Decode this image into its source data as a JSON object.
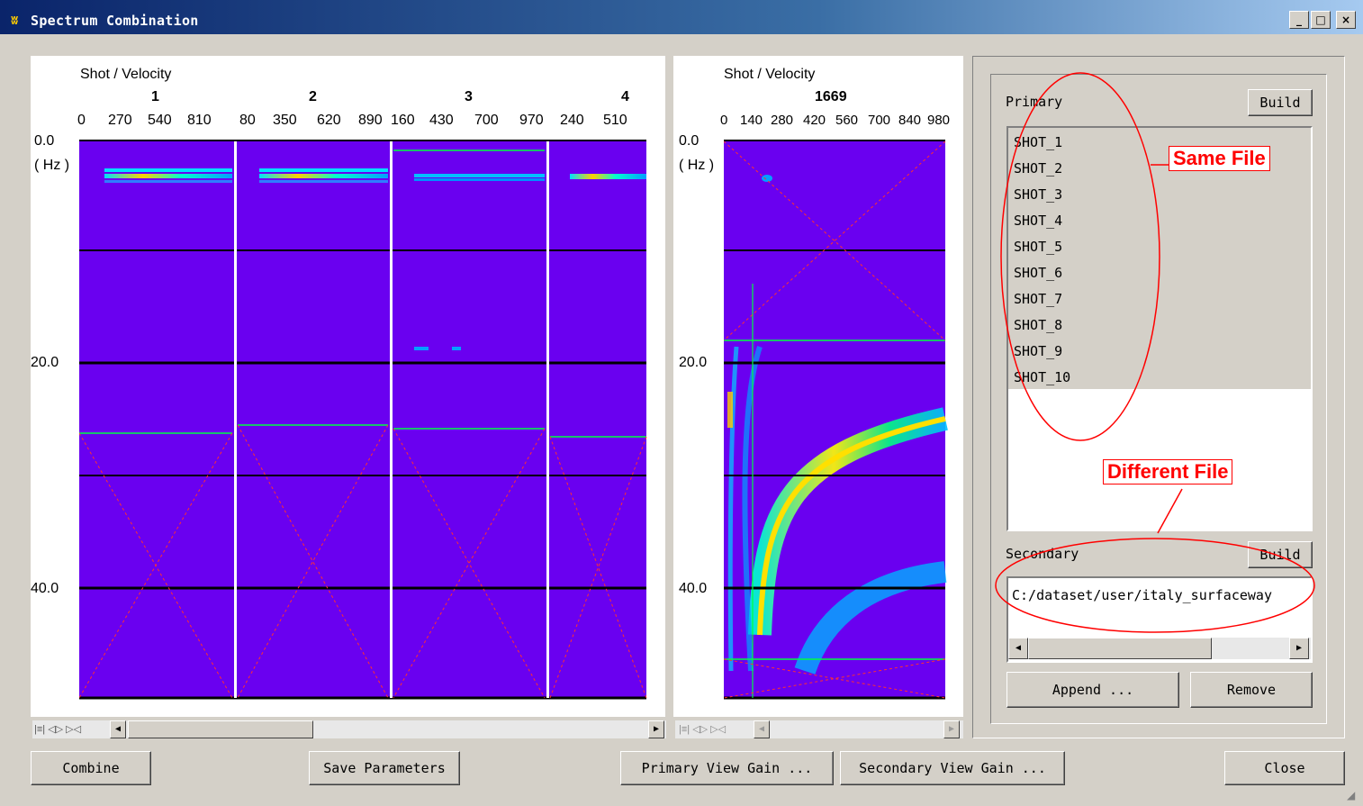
{
  "window": {
    "title": "Spectrum Combination",
    "minimize": "_",
    "maximize": "□",
    "close": "×"
  },
  "primary_plot": {
    "header": "Shot / Velocity",
    "shots": [
      "1",
      "2",
      "3",
      "4"
    ],
    "velocity_ticks": [
      [
        "0",
        "270",
        "540",
        "810"
      ],
      [
        "80",
        "350",
        "620",
        "890"
      ],
      [
        "160",
        "430",
        "700",
        "970"
      ],
      [
        "240",
        "510"
      ]
    ],
    "freq_ticks": [
      "0.0",
      "20.0",
      "40.0"
    ],
    "freq_unit": "( Hz )"
  },
  "secondary_plot": {
    "header": "Shot / Velocity",
    "shot": "1669",
    "velocity_ticks": [
      "0",
      "140",
      "280",
      "420",
      "560",
      "700",
      "840",
      "980"
    ],
    "freq_ticks": [
      "0.0",
      "20.0",
      "40.0"
    ],
    "freq_unit": "( Hz )"
  },
  "primary": {
    "label": "Primary",
    "build_label": "Build",
    "items": [
      "SHOT_1",
      "SHOT_2",
      "SHOT_3",
      "SHOT_4",
      "SHOT_5",
      "SHOT_6",
      "SHOT_7",
      "SHOT_8",
      "SHOT_9",
      "SHOT_10"
    ]
  },
  "secondary": {
    "label": "Secondary",
    "build_label": "Build",
    "path": "C:/dataset/user/italy_surfaceway"
  },
  "annotations": {
    "same_file": "Same File",
    "different_file": "Different File"
  },
  "buttons": {
    "append": "Append ...",
    "remove": "Remove",
    "combine": "Combine",
    "save_parameters": "Save Parameters",
    "primary_view_gain": "Primary View Gain ...",
    "secondary_view_gain": "Secondary View Gain ...",
    "close": "Close"
  },
  "nav_icons": [
    "first-icon",
    "prev-next-icon",
    "last-icon"
  ]
}
